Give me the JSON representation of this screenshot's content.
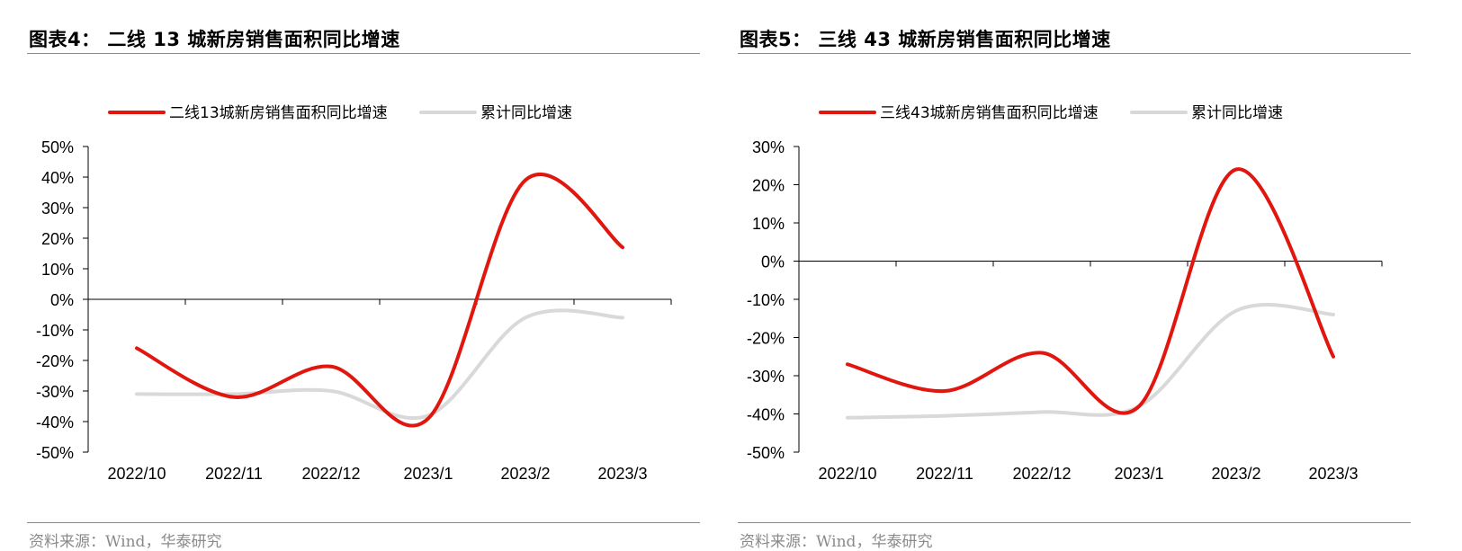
{
  "panels": [
    {
      "title": "图表4：  二线 13 城新房销售面积同比增速",
      "source": "资料来源：Wind，华泰研究"
    },
    {
      "title": "图表5：  三线 43 城新房销售面积同比增速",
      "source": "资料来源：Wind，华泰研究"
    }
  ],
  "colors": {
    "primary": "#e0160f",
    "cumulative": "#d9d9d9",
    "rule": "#6f8fb8"
  },
  "chart_data": [
    {
      "type": "line",
      "categories": [
        "2022/10",
        "2022/11",
        "2022/12",
        "2023/1",
        "2023/2",
        "2023/3"
      ],
      "series": [
        {
          "name": "二线13城新房销售面积同比增速",
          "values": [
            -16,
            -32,
            -22,
            -39,
            39,
            17
          ],
          "color": "#e0160f"
        },
        {
          "name": "累计同比增速",
          "values": [
            -31,
            -31,
            -30,
            -38,
            -6,
            -6
          ],
          "color": "#d9d9d9"
        }
      ],
      "ylim": [
        -50,
        50
      ],
      "yticks": [
        "-50%",
        "-40%",
        "-30%",
        "-20%",
        "-10%",
        "0%",
        "10%",
        "20%",
        "30%",
        "40%",
        "50%"
      ],
      "legend": "top",
      "grid": false,
      "smooth": true
    },
    {
      "type": "line",
      "categories": [
        "2022/10",
        "2022/11",
        "2022/12",
        "2023/1",
        "2023/2",
        "2023/3"
      ],
      "series": [
        {
          "name": "三线43城新房销售面积同比增速",
          "values": [
            -27,
            -34,
            -24,
            -38,
            24,
            -25
          ],
          "color": "#e0160f"
        },
        {
          "name": "累计同比增速",
          "values": [
            -41,
            -40.5,
            -39.5,
            -38,
            -13,
            -14
          ],
          "color": "#d9d9d9"
        }
      ],
      "ylim": [
        -50,
        30
      ],
      "yticks": [
        "-50%",
        "-40%",
        "-30%",
        "-20%",
        "-10%",
        "0%",
        "10%",
        "20%",
        "30%"
      ],
      "legend": "top",
      "grid": false,
      "smooth": true
    }
  ]
}
